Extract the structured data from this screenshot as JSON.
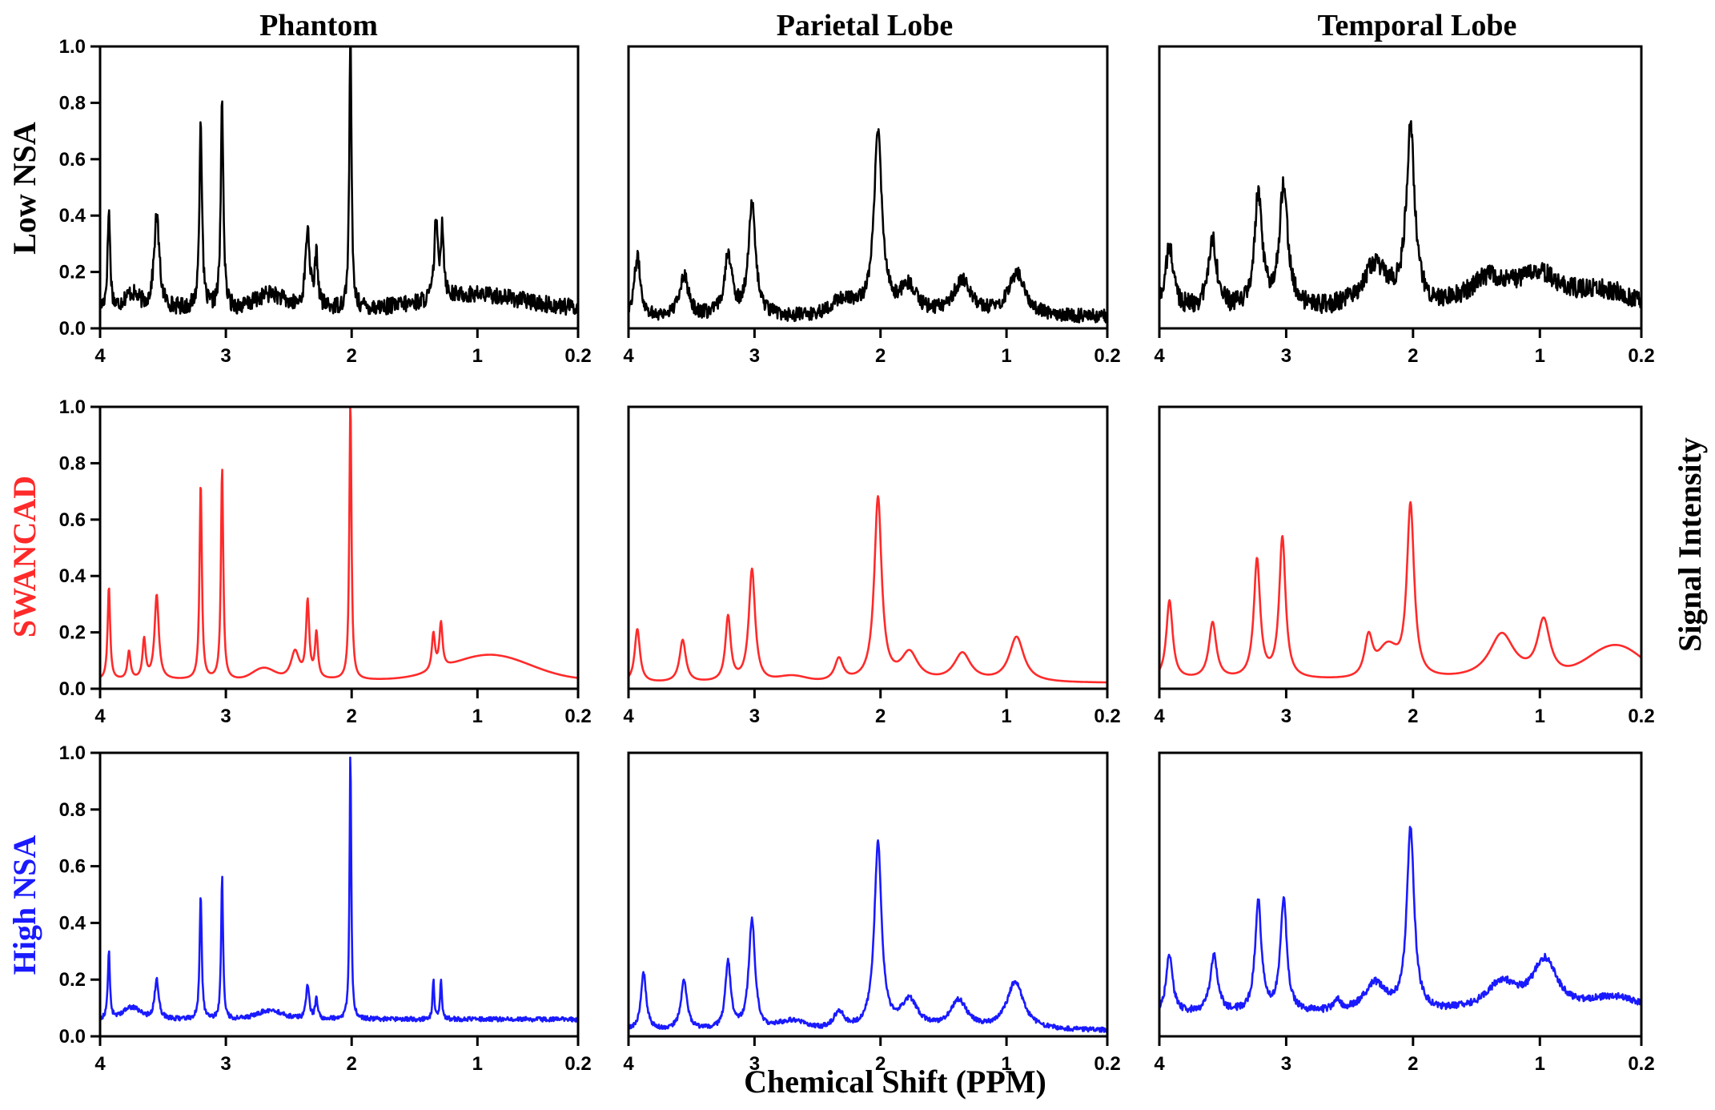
{
  "figure": {
    "column_titles": [
      "Phantom",
      "Parietal Lobe",
      "Temporal Lobe"
    ],
    "row_labels": [
      "Low NSA",
      "SWANCAD",
      "High NSA"
    ],
    "row_colors": [
      "#000000",
      "#ff2a2a",
      "#1a1aff"
    ],
    "xlabel": "Chemical Shift (PPM)",
    "ylabel": "Signal Intensity"
  },
  "chart_data": [
    {
      "type": "line",
      "panel": "Phantom / Low NSA",
      "color": "#000000",
      "xlim": [
        4,
        0.2
      ],
      "ylim": [
        0,
        1
      ],
      "xticks": [
        "4",
        "3",
        "2",
        "1",
        "0.2"
      ],
      "yticks": [
        "0.0",
        "0.2",
        "0.4",
        "0.6",
        "0.8",
        "1.0"
      ],
      "baseline": 0.07,
      "noise": 0.03,
      "peaks": [
        [
          3.93,
          0.35,
          0.012
        ],
        [
          3.55,
          0.33,
          0.025
        ],
        [
          3.2,
          0.68,
          0.012
        ],
        [
          3.03,
          0.74,
          0.012
        ],
        [
          2.35,
          0.28,
          0.02
        ],
        [
          2.28,
          0.18,
          0.015
        ],
        [
          2.01,
          1.0,
          0.01
        ],
        [
          1.33,
          0.28,
          0.015
        ],
        [
          1.28,
          0.25,
          0.015
        ]
      ],
      "humps": [
        [
          3.75,
          0.05,
          0.08
        ],
        [
          2.65,
          0.05,
          0.15
        ],
        [
          1.0,
          0.05,
          0.5
        ]
      ]
    },
    {
      "type": "line",
      "panel": "Parietal Lobe / Low NSA",
      "color": "#000000",
      "xlim": [
        4,
        0.2
      ],
      "ylim": [
        0,
        1
      ],
      "xticks": [
        "4",
        "3",
        "2",
        "1",
        "0.2"
      ],
      "yticks": [],
      "baseline": 0.04,
      "noise": 0.025,
      "peaks": [
        [
          3.93,
          0.21,
          0.03
        ],
        [
          3.56,
          0.15,
          0.04
        ],
        [
          3.21,
          0.22,
          0.035
        ],
        [
          3.02,
          0.39,
          0.035
        ],
        [
          2.02,
          0.64,
          0.04
        ],
        [
          1.78,
          0.1,
          0.08
        ],
        [
          1.35,
          0.12,
          0.09
        ],
        [
          0.92,
          0.15,
          0.08
        ]
      ],
      "humps": [
        [
          2.3,
          0.05,
          0.15
        ]
      ]
    },
    {
      "type": "line",
      "panel": "Temporal Lobe / Low NSA",
      "color": "#000000",
      "xlim": [
        4,
        0.2
      ],
      "ylim": [
        0,
        1
      ],
      "xticks": [
        "4",
        "3",
        "2",
        "1",
        "0.2"
      ],
      "yticks": [],
      "baseline": 0.06,
      "noise": 0.035,
      "peaks": [
        [
          3.92,
          0.22,
          0.04
        ],
        [
          3.58,
          0.25,
          0.04
        ],
        [
          3.22,
          0.4,
          0.035
        ],
        [
          3.02,
          0.44,
          0.04
        ],
        [
          2.02,
          0.62,
          0.04
        ],
        [
          2.3,
          0.15,
          0.12
        ],
        [
          1.4,
          0.1,
          0.2
        ],
        [
          1.0,
          0.12,
          0.2
        ]
      ],
      "humps": [
        [
          0.5,
          0.06,
          0.3
        ]
      ]
    },
    {
      "type": "line",
      "panel": "Phantom / SWANCAD",
      "color": "#ff2a2a",
      "xlim": [
        4,
        0.2
      ],
      "ylim": [
        0,
        1
      ],
      "xticks": [
        "4",
        "3",
        "2",
        "1",
        "0.2"
      ],
      "yticks": [
        "0.0",
        "0.2",
        "0.4",
        "0.6",
        "0.8",
        "1.0"
      ],
      "baseline": 0.03,
      "noise": 0.0,
      "peaks": [
        [
          3.93,
          0.33,
          0.012
        ],
        [
          3.77,
          0.1,
          0.015
        ],
        [
          3.65,
          0.14,
          0.015
        ],
        [
          3.55,
          0.3,
          0.02
        ],
        [
          3.2,
          0.7,
          0.011
        ],
        [
          3.03,
          0.75,
          0.011
        ],
        [
          2.45,
          0.1,
          0.04
        ],
        [
          2.35,
          0.27,
          0.015
        ],
        [
          2.28,
          0.16,
          0.014
        ],
        [
          2.01,
          1.0,
          0.01
        ],
        [
          1.35,
          0.13,
          0.015
        ],
        [
          1.29,
          0.16,
          0.015
        ]
      ],
      "humps": [
        [
          2.7,
          0.04,
          0.12
        ],
        [
          0.9,
          0.09,
          0.45
        ]
      ]
    },
    {
      "type": "line",
      "panel": "Parietal Lobe / SWANCAD",
      "color": "#ff2a2a",
      "xlim": [
        4,
        0.2
      ],
      "ylim": [
        0,
        1
      ],
      "xticks": [
        "4",
        "3",
        "2",
        "1",
        "0.2"
      ],
      "yticks": [],
      "baseline": 0.02,
      "noise": 0.0,
      "peaks": [
        [
          3.93,
          0.19,
          0.025
        ],
        [
          3.57,
          0.15,
          0.03
        ],
        [
          3.21,
          0.23,
          0.025
        ],
        [
          3.02,
          0.4,
          0.03
        ],
        [
          2.33,
          0.08,
          0.04
        ],
        [
          2.02,
          0.65,
          0.035
        ],
        [
          1.77,
          0.1,
          0.08
        ],
        [
          1.35,
          0.1,
          0.08
        ],
        [
          0.92,
          0.16,
          0.07
        ]
      ],
      "humps": [
        [
          2.7,
          0.02,
          0.15
        ]
      ]
    },
    {
      "type": "line",
      "panel": "Temporal Lobe / SWANCAD",
      "color": "#ff2a2a",
      "xlim": [
        4,
        0.2
      ],
      "ylim": [
        0,
        1
      ],
      "xticks": [
        "4",
        "3",
        "2",
        "1",
        "0.2"
      ],
      "yticks": [],
      "baseline": 0.03,
      "noise": 0.0,
      "peaks": [
        [
          3.92,
          0.28,
          0.03
        ],
        [
          3.58,
          0.2,
          0.035
        ],
        [
          3.23,
          0.42,
          0.03
        ],
        [
          3.03,
          0.5,
          0.03
        ],
        [
          2.35,
          0.15,
          0.04
        ],
        [
          2.02,
          0.62,
          0.035
        ],
        [
          1.3,
          0.16,
          0.12
        ],
        [
          0.97,
          0.2,
          0.06
        ]
      ],
      "humps": [
        [
          2.2,
          0.1,
          0.1
        ],
        [
          0.4,
          0.12,
          0.3
        ]
      ]
    },
    {
      "type": "line",
      "panel": "Phantom / High NSA",
      "color": "#1a1aff",
      "xlim": [
        4,
        0.2
      ],
      "ylim": [
        0,
        1
      ],
      "xticks": [
        "4",
        "3",
        "2",
        "1",
        "0.2"
      ],
      "yticks": [
        "0.0",
        "0.2",
        "0.4",
        "0.6",
        "0.8",
        "1.0"
      ],
      "baseline": 0.06,
      "noise": 0.008,
      "peaks": [
        [
          3.93,
          0.24,
          0.01
        ],
        [
          3.55,
          0.14,
          0.02
        ],
        [
          3.2,
          0.44,
          0.01
        ],
        [
          3.03,
          0.51,
          0.009
        ],
        [
          2.35,
          0.12,
          0.015
        ],
        [
          2.28,
          0.07,
          0.012
        ],
        [
          2.01,
          0.95,
          0.008
        ],
        [
          1.35,
          0.14,
          0.008
        ],
        [
          1.29,
          0.14,
          0.008
        ]
      ],
      "humps": [
        [
          3.75,
          0.04,
          0.1
        ],
        [
          2.65,
          0.03,
          0.15
        ]
      ]
    },
    {
      "type": "line",
      "panel": "Parietal Lobe / High NSA",
      "color": "#1a1aff",
      "xlim": [
        4,
        0.2
      ],
      "ylim": [
        0,
        1
      ],
      "xticks": [
        "4",
        "3",
        "2",
        "1",
        "0.2"
      ],
      "yticks": [],
      "baseline": 0.02,
      "noise": 0.008,
      "peaks": [
        [
          3.88,
          0.2,
          0.025
        ],
        [
          3.56,
          0.17,
          0.03
        ],
        [
          3.21,
          0.24,
          0.025
        ],
        [
          3.02,
          0.39,
          0.03
        ],
        [
          2.33,
          0.06,
          0.05
        ],
        [
          2.02,
          0.65,
          0.035
        ],
        [
          1.77,
          0.1,
          0.08
        ],
        [
          1.38,
          0.1,
          0.08
        ],
        [
          0.93,
          0.17,
          0.08
        ]
      ],
      "humps": [
        [
          2.7,
          0.03,
          0.15
        ]
      ]
    },
    {
      "type": "line",
      "panel": "Temporal Lobe / High NSA",
      "color": "#1a1aff",
      "xlim": [
        4,
        0.2
      ],
      "ylim": [
        0,
        1
      ],
      "xticks": [
        "4",
        "3",
        "2",
        "1",
        "0.2"
      ],
      "yticks": [],
      "baseline": 0.08,
      "noise": 0.012,
      "peaks": [
        [
          3.92,
          0.21,
          0.03
        ],
        [
          3.57,
          0.2,
          0.035
        ],
        [
          3.22,
          0.39,
          0.03
        ],
        [
          3.02,
          0.4,
          0.03
        ],
        [
          2.6,
          0.04,
          0.03
        ],
        [
          2.3,
          0.1,
          0.1
        ],
        [
          2.02,
          0.64,
          0.035
        ],
        [
          1.3,
          0.1,
          0.15
        ],
        [
          0.96,
          0.18,
          0.12
        ]
      ],
      "humps": [
        [
          0.4,
          0.05,
          0.3
        ]
      ]
    }
  ]
}
